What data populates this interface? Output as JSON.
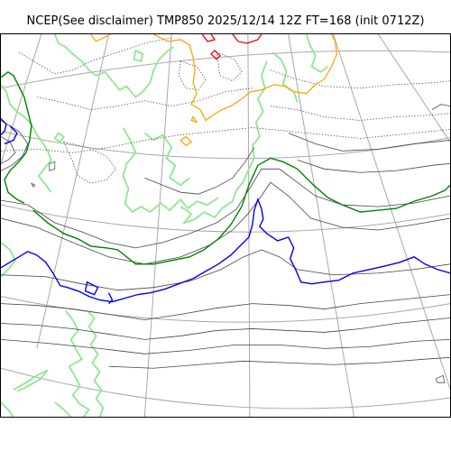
{
  "title": "NCEP(See disclaimer) TMP850 2025/12/14 12Z FT=168 (init 0712Z)",
  "colors": {
    "graticule": "#a8a8a8",
    "coastline": "#8ee88e",
    "isotherm": "#444444",
    "isotherm_dotted": "#555555",
    "freezing_contour": "#0000ee",
    "warm_contour": "#008000",
    "cold_contour": "#ffa500",
    "coldest_contour": "#ee0000"
  },
  "icons": {
    "map": "weather-map-icon"
  }
}
